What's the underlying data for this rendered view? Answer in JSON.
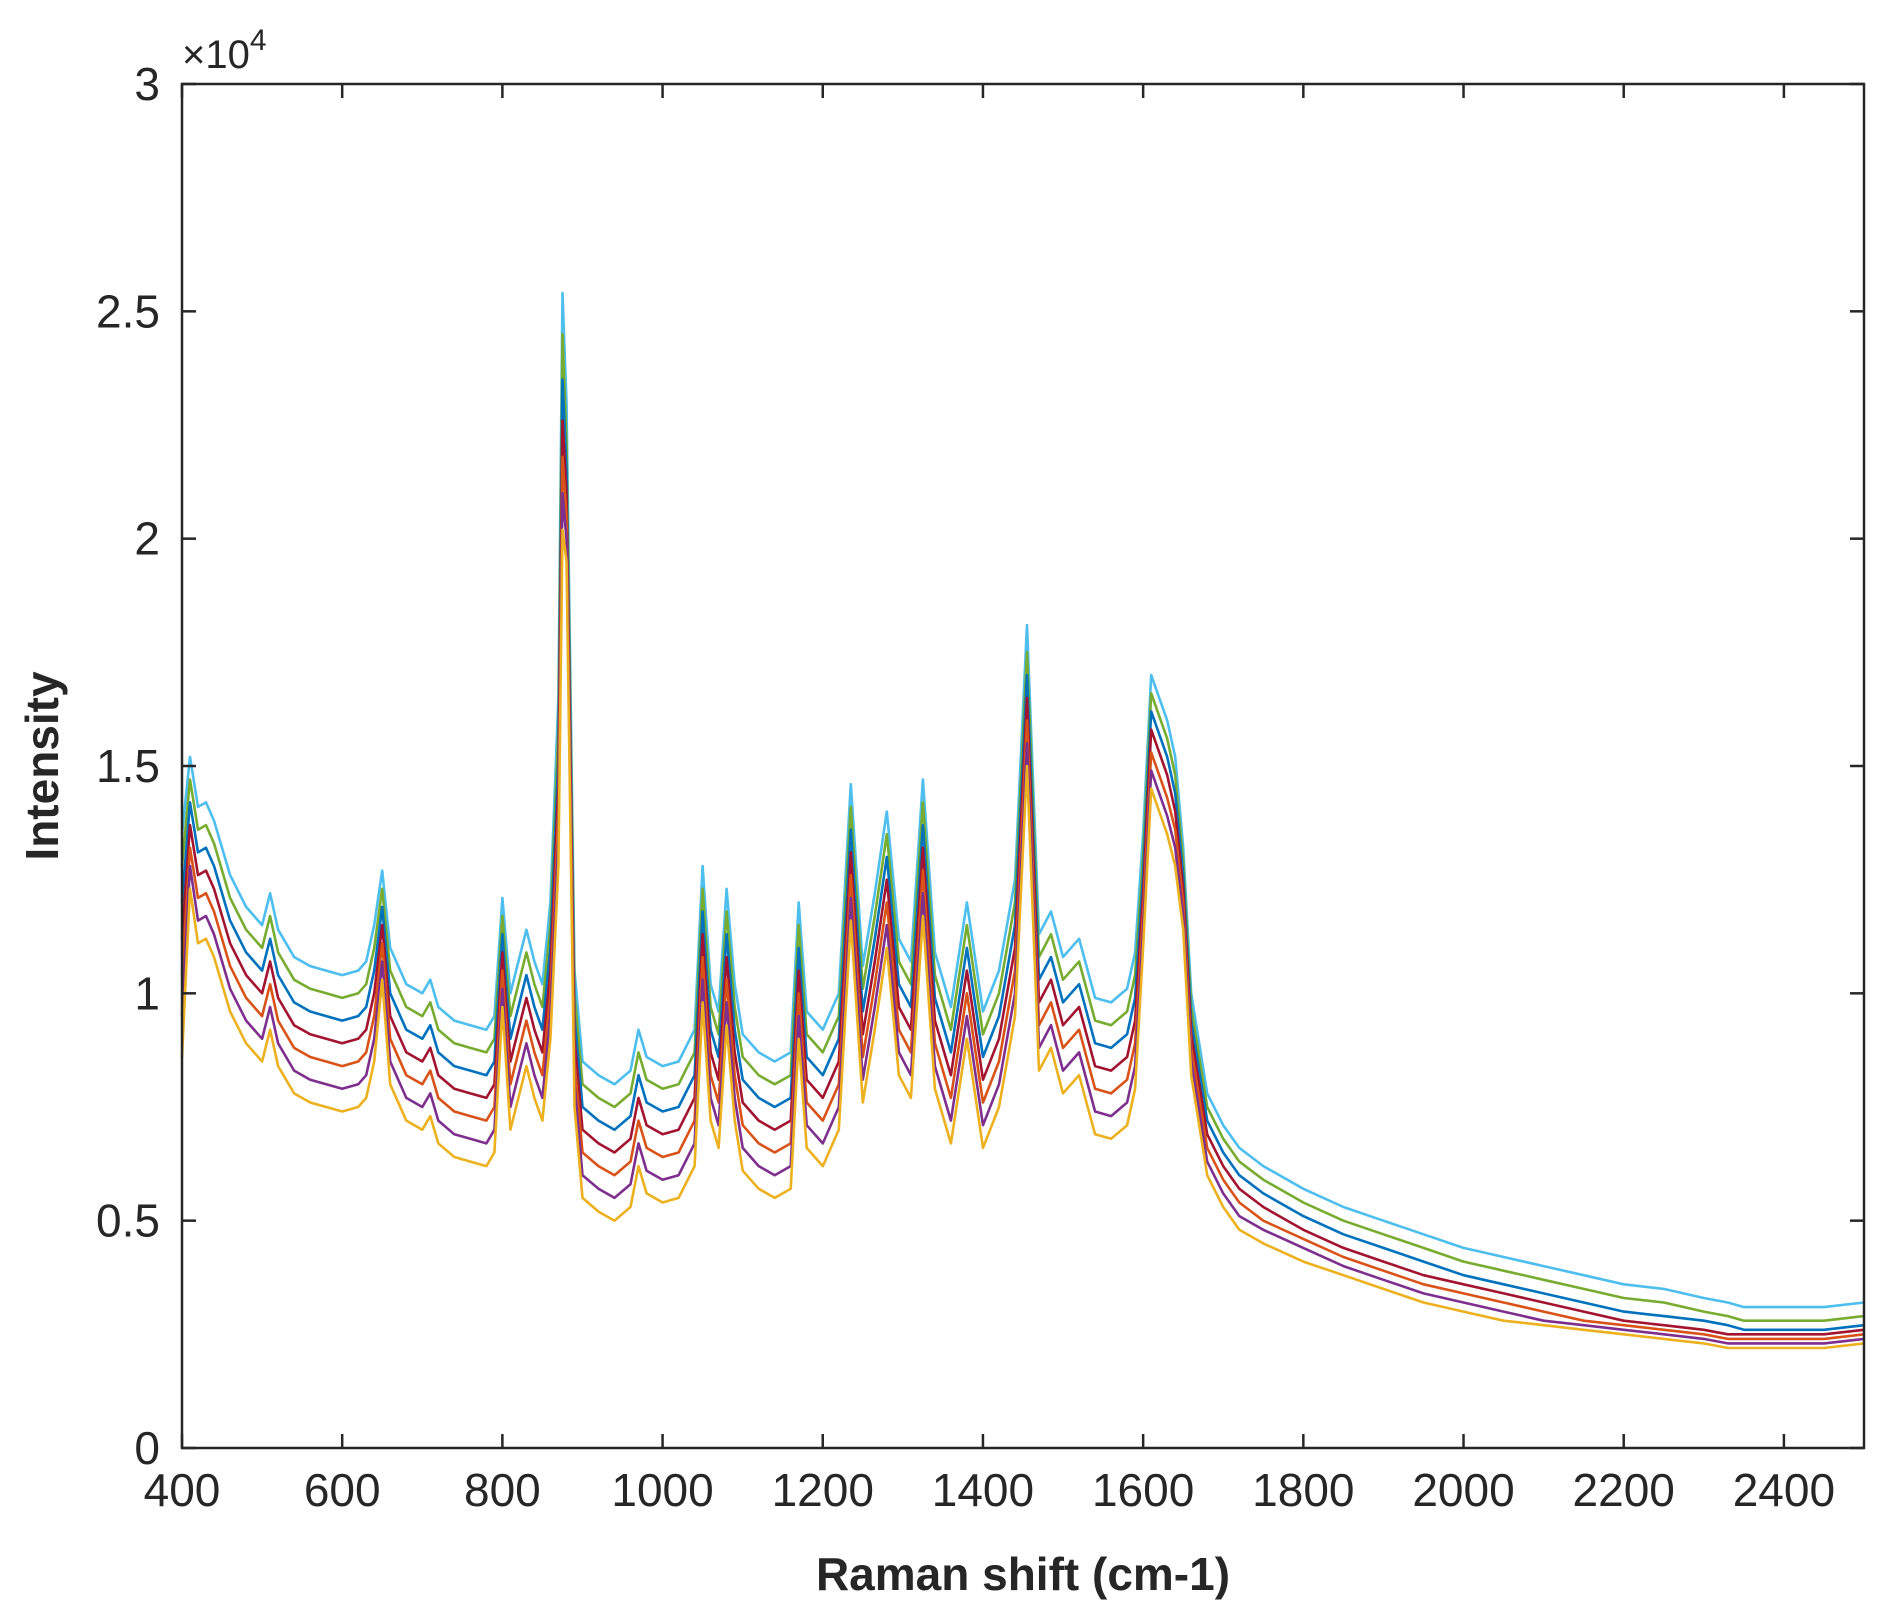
{
  "chart_data": {
    "type": "line",
    "title": "",
    "xlabel": "Raman shift (cm-1)",
    "ylabel": "Intensity",
    "xlim": [
      400,
      2500
    ],
    "ylim": [
      0,
      30000
    ],
    "y_exponent_label": "×10",
    "y_exponent_power": "4",
    "grid": false,
    "legend": "none",
    "xticks": [
      400,
      600,
      800,
      1000,
      1200,
      1400,
      1600,
      1800,
      2000,
      2200,
      2400
    ],
    "xtick_labels": [
      "400",
      "600",
      "800",
      "1000",
      "1200",
      "1400",
      "1600",
      "1800",
      "2000",
      "2200",
      "2400"
    ],
    "yticks": [
      0,
      5000,
      10000,
      15000,
      20000,
      25000,
      30000
    ],
    "ytick_labels": [
      "0",
      "0.5",
      "1",
      "1.5",
      "2",
      "2.5",
      "3"
    ],
    "x": [
      400,
      410,
      420,
      430,
      440,
      460,
      480,
      500,
      510,
      520,
      540,
      560,
      580,
      600,
      620,
      630,
      640,
      650,
      660,
      680,
      700,
      710,
      720,
      740,
      760,
      780,
      790,
      800,
      810,
      820,
      830,
      840,
      850,
      860,
      870,
      875,
      880,
      890,
      900,
      920,
      940,
      960,
      970,
      980,
      1000,
      1020,
      1040,
      1050,
      1060,
      1070,
      1080,
      1090,
      1100,
      1120,
      1140,
      1160,
      1170,
      1180,
      1200,
      1220,
      1235,
      1250,
      1265,
      1280,
      1295,
      1310,
      1325,
      1340,
      1360,
      1380,
      1400,
      1420,
      1440,
      1455,
      1470,
      1485,
      1500,
      1520,
      1540,
      1560,
      1580,
      1590,
      1600,
      1610,
      1620,
      1630,
      1640,
      1650,
      1660,
      1680,
      1700,
      1720,
      1750,
      1800,
      1850,
      1900,
      1950,
      2000,
      2050,
      2100,
      2150,
      2200,
      2250,
      2300,
      2330,
      2350,
      2400,
      2450,
      2500
    ],
    "series": [
      {
        "values": [
          13500,
          15200,
          14100,
          14200,
          13800,
          12600,
          11900,
          11500,
          12200,
          11400,
          10800,
          10600,
          10500,
          10400,
          10500,
          10700,
          11500,
          12700,
          11000,
          10200,
          10000,
          10300,
          9700,
          9400,
          9300,
          9200,
          9500,
          12100,
          10000,
          10700,
          11400,
          10700,
          10200,
          12000,
          16500,
          25400,
          23000,
          10500,
          8500,
          8200,
          8000,
          8300,
          9200,
          8600,
          8400,
          8500,
          9200,
          12800,
          10200,
          9600,
          12300,
          10200,
          9100,
          8700,
          8500,
          8700,
          12000,
          9600,
          9200,
          10000,
          14600,
          10600,
          12200,
          14000,
          11200,
          10700,
          14700,
          10900,
          9700,
          12000,
          9600,
          10500,
          12500,
          18100,
          11300,
          11800,
          10800,
          11200,
          9900,
          9800,
          10100,
          10900,
          13500,
          17000,
          16500,
          16000,
          15200,
          13200,
          10000,
          7800,
          7100,
          6600,
          6200,
          5700,
          5300,
          5000,
          4700,
          4400,
          4200,
          4000,
          3800,
          3600,
          3500,
          3300,
          3200,
          3100,
          3100,
          3100,
          3200
        ]
      },
      {
        "values": [
          12800,
          14700,
          13600,
          13700,
          13300,
          12100,
          11400,
          11000,
          11700,
          10900,
          10300,
          10100,
          10000,
          9900,
          10000,
          10200,
          11000,
          12300,
          10500,
          9700,
          9500,
          9800,
          9200,
          8900,
          8800,
          8700,
          9000,
          11700,
          9500,
          10200,
          10900,
          10200,
          9700,
          11500,
          15800,
          24500,
          22100,
          10000,
          8000,
          7700,
          7500,
          7800,
          8700,
          8100,
          7900,
          8000,
          8700,
          12300,
          9700,
          9100,
          11800,
          9700,
          8600,
          8200,
          8000,
          8200,
          11500,
          9100,
          8700,
          9500,
          14100,
          10100,
          11700,
          13500,
          10700,
          10200,
          14200,
          10400,
          9200,
          11500,
          9100,
          10000,
          12000,
          17500,
          10800,
          11300,
          10300,
          10700,
          9400,
          9300,
          9600,
          10400,
          13000,
          16600,
          16100,
          15600,
          14800,
          12900,
          9700,
          7500,
          6800,
          6300,
          5900,
          5400,
          5000,
          4700,
          4400,
          4100,
          3900,
          3700,
          3500,
          3300,
          3200,
          3000,
          2900,
          2800,
          2800,
          2800,
          2900
        ]
      },
      {
        "values": [
          12000,
          14200,
          13100,
          13200,
          12800,
          11600,
          10900,
          10500,
          11200,
          10400,
          9800,
          9600,
          9500,
          9400,
          9500,
          9700,
          10500,
          11900,
          10000,
          9200,
          9000,
          9300,
          8700,
          8400,
          8300,
          8200,
          8500,
          11300,
          9000,
          9700,
          10400,
          9700,
          9200,
          11000,
          15200,
          23500,
          21500,
          9500,
          7500,
          7200,
          7000,
          7300,
          8200,
          7600,
          7400,
          7500,
          8200,
          11800,
          9200,
          8600,
          11300,
          9200,
          8100,
          7700,
          7500,
          7700,
          11000,
          8600,
          8200,
          9000,
          13600,
          9600,
          11200,
          13000,
          10200,
          9700,
          13700,
          9900,
          8700,
          11000,
          8600,
          9500,
          11500,
          17000,
          10300,
          10800,
          9800,
          10200,
          8900,
          8800,
          9100,
          9900,
          12600,
          16200,
          15700,
          15200,
          14400,
          12600,
          9400,
          7200,
          6500,
          6000,
          5600,
          5100,
          4700,
          4400,
          4100,
          3800,
          3600,
          3400,
          3200,
          3000,
          2900,
          2800,
          2700,
          2600,
          2600,
          2600,
          2700
        ]
      },
      {
        "values": [
          11200,
          13700,
          12600,
          12700,
          12300,
          11100,
          10400,
          10000,
          10700,
          9900,
          9300,
          9100,
          9000,
          8900,
          9000,
          9200,
          10000,
          11500,
          9500,
          8700,
          8500,
          8800,
          8200,
          7900,
          7800,
          7700,
          8000,
          10900,
          8500,
          9200,
          9900,
          9200,
          8700,
          10500,
          14600,
          22600,
          21000,
          9000,
          7000,
          6700,
          6500,
          6800,
          7700,
          7100,
          6900,
          7000,
          7700,
          11300,
          8700,
          8100,
          10800,
          8700,
          7600,
          7200,
          7000,
          7200,
          10500,
          8100,
          7700,
          8500,
          13100,
          9100,
          10700,
          12500,
          9700,
          9200,
          13200,
          9400,
          8200,
          10500,
          8100,
          9000,
          11000,
          16500,
          9800,
          10300,
          9300,
          9700,
          8400,
          8300,
          8600,
          9400,
          12200,
          15800,
          15300,
          14800,
          14000,
          12300,
          9100,
          6900,
          6200,
          5700,
          5300,
          4800,
          4400,
          4100,
          3800,
          3600,
          3400,
          3200,
          3000,
          2800,
          2700,
          2600,
          2500,
          2500,
          2500,
          2500,
          2600
        ]
      },
      {
        "values": [
          10400,
          13200,
          12100,
          12200,
          11800,
          10600,
          9900,
          9500,
          10200,
          9400,
          8800,
          8600,
          8500,
          8400,
          8500,
          8700,
          9500,
          11100,
          9000,
          8200,
          8000,
          8300,
          7700,
          7400,
          7300,
          7200,
          7500,
          10500,
          8000,
          8700,
          9400,
          8700,
          8200,
          10000,
          14000,
          21800,
          20500,
          8500,
          6500,
          6200,
          6000,
          6300,
          7200,
          6600,
          6400,
          6500,
          7200,
          10800,
          8200,
          7600,
          10300,
          8200,
          7100,
          6700,
          6500,
          6700,
          10000,
          7600,
          7200,
          8000,
          12600,
          8600,
          10200,
          12000,
          9200,
          8700,
          12700,
          8900,
          7700,
          10000,
          7600,
          8500,
          10500,
          16000,
          9300,
          9800,
          8800,
          9200,
          7900,
          7800,
          8100,
          8900,
          11800,
          15300,
          14800,
          14300,
          13600,
          12000,
          8800,
          6600,
          5900,
          5400,
          5000,
          4600,
          4200,
          3900,
          3600,
          3400,
          3200,
          3000,
          2800,
          2700,
          2600,
          2500,
          2400,
          2400,
          2400,
          2400,
          2500
        ]
      },
      {
        "values": [
          9500,
          12800,
          11600,
          11700,
          11300,
          10100,
          9400,
          9000,
          9700,
          8900,
          8300,
          8100,
          8000,
          7900,
          8000,
          8200,
          9000,
          10700,
          8500,
          7700,
          7500,
          7800,
          7200,
          6900,
          6800,
          6700,
          7000,
          10100,
          7500,
          8200,
          8900,
          8200,
          7700,
          9500,
          13400,
          21000,
          20000,
          8000,
          6000,
          5700,
          5500,
          5800,
          6700,
          6100,
          5900,
          6000,
          6700,
          10300,
          7700,
          7100,
          9800,
          7700,
          6600,
          6200,
          6000,
          6200,
          9500,
          7100,
          6700,
          7500,
          12100,
          8100,
          9700,
          11500,
          8700,
          8200,
          12200,
          8400,
          7200,
          9500,
          7100,
          8000,
          10000,
          15500,
          8800,
          9300,
          8300,
          8700,
          7400,
          7300,
          7600,
          8400,
          11400,
          14900,
          14400,
          13900,
          13200,
          11700,
          8500,
          6300,
          5600,
          5100,
          4800,
          4400,
          4000,
          3700,
          3400,
          3200,
          3000,
          2800,
          2700,
          2600,
          2500,
          2400,
          2300,
          2300,
          2300,
          2300,
          2400
        ]
      },
      {
        "values": [
          8600,
          12300,
          11100,
          11200,
          10800,
          9600,
          8900,
          8500,
          9200,
          8400,
          7800,
          7600,
          7500,
          7400,
          7500,
          7700,
          8500,
          10300,
          8000,
          7200,
          7000,
          7300,
          6700,
          6400,
          6300,
          6200,
          6500,
          9700,
          7000,
          7700,
          8400,
          7700,
          7200,
          9000,
          12800,
          20200,
          19500,
          7500,
          5500,
          5200,
          5000,
          5300,
          6200,
          5600,
          5400,
          5500,
          6200,
          9800,
          7200,
          6600,
          9300,
          7200,
          6100,
          5700,
          5500,
          5700,
          9000,
          6600,
          6200,
          7000,
          11600,
          7600,
          9200,
          11000,
          8200,
          7700,
          11700,
          7900,
          6700,
          9000,
          6600,
          7500,
          9500,
          15000,
          8300,
          8800,
          7800,
          8200,
          6900,
          6800,
          7100,
          7900,
          11000,
          14500,
          14000,
          13500,
          12800,
          11400,
          8200,
          6000,
          5300,
          4800,
          4500,
          4100,
          3800,
          3500,
          3200,
          3000,
          2800,
          2700,
          2600,
          2500,
          2400,
          2300,
          2200,
          2200,
          2200,
          2200,
          2300
        ]
      }
    ],
    "series_colors": [
      "#4dbeee",
      "#77ac30",
      "#0072bd",
      "#a2142f",
      "#d95319",
      "#7e2f8e",
      "#edb120"
    ]
  }
}
